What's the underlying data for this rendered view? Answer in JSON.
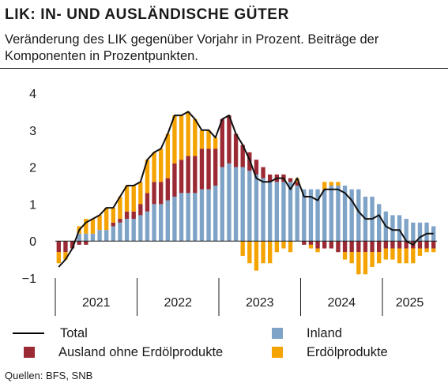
{
  "header": {
    "title": "LIK: IN- UND AUSLÄNDISCHE GÜTER",
    "subtitle": "Veränderung des LIK gegenüber Vorjahr in Prozent. Beiträge der Komponenten in Prozentpunkten."
  },
  "source": "Quellen: BFS, SNB",
  "colors": {
    "total": "#111111",
    "inland": "#7fa3c7",
    "ausland": "#9b2a34",
    "erdoel": "#f4a300"
  },
  "chart_data": {
    "type": "bar",
    "subtype": "stacked-bar-with-line",
    "ylim": [
      -1,
      4
    ],
    "yticks": [
      -1,
      0,
      1,
      2,
      3,
      4
    ],
    "x_year_labels": [
      "2021",
      "2022",
      "2023",
      "2024",
      "2025"
    ],
    "months": [
      "Jan 2021",
      "Feb 2021",
      "Mar 2021",
      "Apr 2021",
      "May 2021",
      "Jun 2021",
      "Jul 2021",
      "Aug 2021",
      "Sep 2021",
      "Oct 2021",
      "Nov 2021",
      "Dec 2021",
      "Jan 2022",
      "Feb 2022",
      "Mar 2022",
      "Apr 2022",
      "May 2022",
      "Jun 2022",
      "Jul 2022",
      "Aug 2022",
      "Sep 2022",
      "Oct 2022",
      "Nov 2022",
      "Dec 2022",
      "Jan 2023",
      "Feb 2023",
      "Mar 2023",
      "Apr 2023",
      "May 2023",
      "Jun 2023",
      "Jul 2023",
      "Aug 2023",
      "Sep 2023",
      "Oct 2023",
      "Nov 2023",
      "Dec 2023",
      "Jan 2024",
      "Feb 2024",
      "Mar 2024",
      "Apr 2024",
      "May 2024",
      "Jun 2024",
      "Jul 2024",
      "Aug 2024",
      "Sep 2024",
      "Oct 2024",
      "Nov 2024",
      "Dec 2024",
      "Jan 2025",
      "Feb 2025",
      "Mar 2025",
      "Apr 2025",
      "May 2025",
      "Jun 2025",
      "Jul 2025",
      "Aug 2025"
    ],
    "series": [
      {
        "name": "Total",
        "values": [
          -0.7,
          -0.5,
          -0.2,
          0.3,
          0.5,
          0.6,
          0.7,
          0.9,
          0.9,
          1.2,
          1.5,
          1.5,
          1.6,
          2.2,
          2.4,
          2.5,
          2.9,
          3.4,
          3.4,
          3.5,
          3.3,
          3.0,
          3.0,
          2.8,
          3.3,
          3.4,
          2.9,
          2.6,
          2.2,
          1.7,
          1.6,
          1.6,
          1.7,
          1.7,
          1.4,
          1.7,
          1.2,
          1.2,
          1.1,
          1.4,
          1.4,
          1.4,
          1.3,
          1.1,
          0.8,
          0.6,
          0.6,
          0.7,
          0.4,
          0.3,
          0.3,
          0.0,
          -0.1,
          0.1,
          0.2,
          0.2
        ]
      },
      {
        "name": "Inland",
        "values": [
          0.0,
          0.0,
          0.0,
          0.2,
          0.2,
          0.2,
          0.3,
          0.3,
          0.4,
          0.5,
          0.6,
          0.6,
          0.7,
          0.8,
          1.0,
          1.0,
          1.1,
          1.2,
          1.3,
          1.3,
          1.3,
          1.4,
          1.4,
          1.5,
          2.0,
          2.1,
          2.0,
          2.0,
          1.9,
          1.8,
          1.7,
          1.6,
          1.6,
          1.6,
          1.6,
          1.5,
          1.4,
          1.4,
          1.4,
          1.4,
          1.5,
          1.5,
          1.5,
          1.4,
          1.4,
          1.2,
          1.2,
          1.0,
          0.8,
          0.7,
          0.7,
          0.6,
          0.5,
          0.5,
          0.5,
          0.4
        ]
      },
      {
        "name": "Ausland ohne Erdölprodukte",
        "values": [
          -0.3,
          -0.3,
          -0.2,
          -0.1,
          -0.1,
          0.0,
          0.0,
          0.0,
          0.1,
          0.1,
          0.2,
          0.2,
          0.3,
          0.5,
          0.6,
          0.6,
          0.6,
          0.9,
          0.9,
          1.0,
          1.0,
          1.1,
          1.1,
          1.0,
          1.3,
          1.3,
          0.9,
          0.6,
          0.5,
          0.4,
          0.3,
          0.2,
          0.2,
          0.2,
          0.1,
          0.1,
          -0.1,
          -0.1,
          -0.2,
          -0.2,
          -0.2,
          -0.3,
          -0.3,
          -0.3,
          -0.3,
          -0.3,
          -0.3,
          -0.3,
          -0.2,
          -0.2,
          -0.2,
          -0.2,
          -0.2,
          -0.2,
          -0.2,
          -0.2
        ]
      },
      {
        "name": "Erdölprodukte",
        "values": [
          -0.3,
          -0.2,
          0.0,
          0.2,
          0.4,
          0.4,
          0.4,
          0.6,
          0.4,
          0.6,
          0.7,
          0.7,
          0.6,
          0.9,
          0.8,
          0.9,
          1.2,
          1.3,
          1.2,
          1.2,
          1.0,
          0.5,
          0.5,
          0.3,
          0.0,
          0.0,
          0.0,
          -0.4,
          -0.6,
          -0.8,
          -0.6,
          -0.6,
          -0.3,
          -0.2,
          -0.3,
          0.1,
          0.0,
          -0.1,
          -0.1,
          0.2,
          0.1,
          0.1,
          -0.2,
          -0.3,
          -0.6,
          -0.6,
          -0.4,
          -0.3,
          -0.3,
          -0.3,
          -0.4,
          -0.4,
          -0.4,
          -0.2,
          -0.1,
          -0.1
        ]
      }
    ],
    "legend": [
      "Total",
      "Inland",
      "Ausland ohne Erdölprodukte",
      "Erdölprodukte"
    ],
    "legend_position": "bottom"
  }
}
